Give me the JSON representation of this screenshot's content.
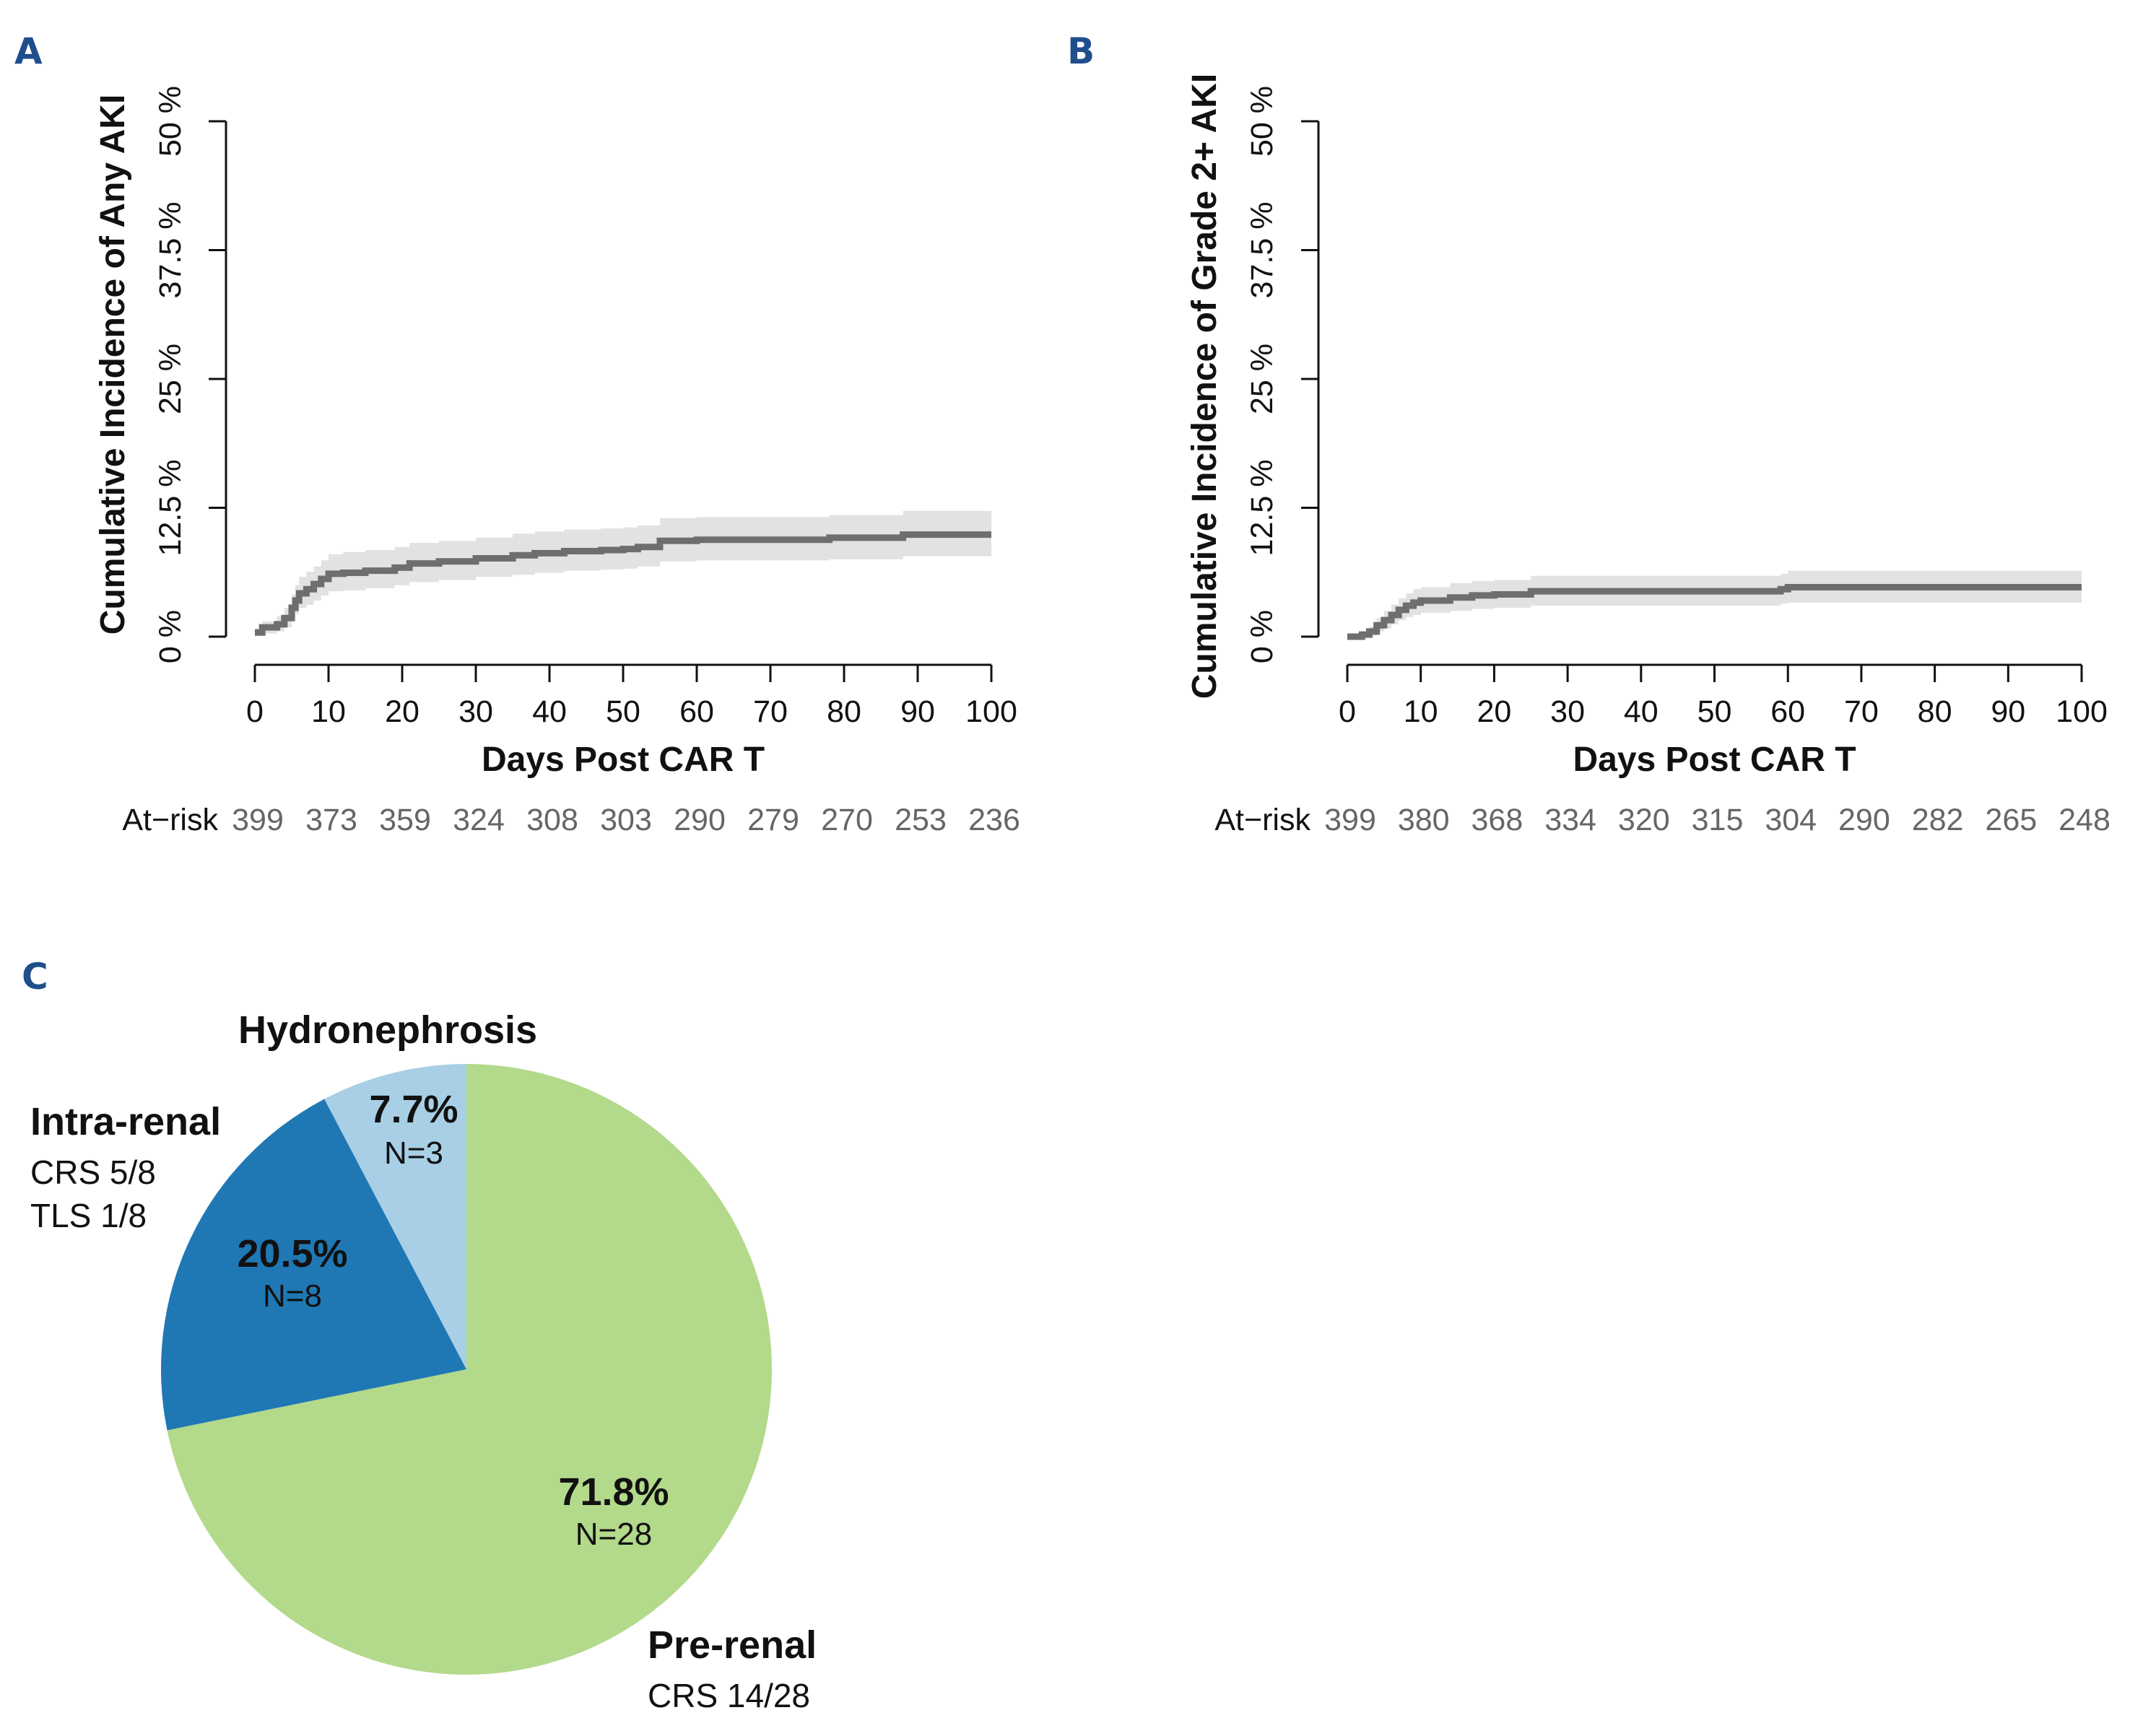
{
  "chart_data": [
    {
      "panel": "A",
      "type": "line",
      "xlabel": "Days Post CAR T",
      "ylabel": "Cumulative Incidence of Any AKI",
      "xlim": [
        0,
        100
      ],
      "ylim": [
        0,
        50
      ],
      "x_ticks": [
        "0",
        "10",
        "20",
        "30",
        "40",
        "50",
        "60",
        "70",
        "80",
        "90",
        "100"
      ],
      "y_ticks": [
        "0 %",
        "12.5 %",
        "25 %",
        "37.5 %",
        "50 %"
      ],
      "at_risk_label": "At−risk",
      "at_risk": [
        "399",
        "373",
        "359",
        "324",
        "308",
        "303",
        "290",
        "279",
        "270",
        "253",
        "236"
      ],
      "curve": {
        "x": [
          0,
          1,
          3,
          4,
          5,
          5.5,
          6,
          7,
          8,
          9,
          10,
          12,
          15,
          19,
          21,
          25,
          30,
          35,
          38,
          42,
          47,
          50,
          52,
          55,
          60,
          70,
          78,
          80,
          88,
          100
        ],
        "y": [
          0.4,
          0.9,
          1.2,
          1.8,
          2.8,
          3.5,
          4.2,
          4.6,
          5.1,
          5.6,
          6.1,
          6.2,
          6.4,
          6.7,
          7.1,
          7.3,
          7.6,
          7.9,
          8.1,
          8.3,
          8.4,
          8.5,
          8.7,
          9.3,
          9.4,
          9.4,
          9.6,
          9.6,
          9.9,
          9.9
        ]
      },
      "band_low": [
        0.1,
        0.3,
        0.5,
        0.9,
        1.6,
        2.2,
        2.8,
        3.1,
        3.5,
        4.0,
        4.4,
        4.5,
        4.7,
        5.0,
        5.3,
        5.5,
        5.8,
        6.0,
        6.2,
        6.4,
        6.5,
        6.6,
        6.8,
        7.3,
        7.4,
        7.4,
        7.5,
        7.5,
        7.8,
        7.8
      ],
      "band_high": [
        0.8,
        1.5,
        2.0,
        2.8,
        4.1,
        5.0,
        5.8,
        6.3,
        6.8,
        7.4,
        8.0,
        8.2,
        8.4,
        8.7,
        9.1,
        9.3,
        9.6,
        10.0,
        10.2,
        10.4,
        10.5,
        10.6,
        10.8,
        11.5,
        11.6,
        11.6,
        11.8,
        11.8,
        12.2,
        12.2
      ]
    },
    {
      "panel": "B",
      "type": "line",
      "xlabel": "Days Post CAR T",
      "ylabel": "Cumulative Incidence of Grade 2+ AKI",
      "xlim": [
        0,
        100
      ],
      "ylim": [
        0,
        50
      ],
      "x_ticks": [
        "0",
        "10",
        "20",
        "30",
        "40",
        "50",
        "60",
        "70",
        "80",
        "90",
        "100"
      ],
      "y_ticks": [
        "0 %",
        "12.5 %",
        "25 %",
        "37.5 %",
        "50 %"
      ],
      "at_risk_label": "At−risk",
      "at_risk": [
        "399",
        "380",
        "368",
        "334",
        "320",
        "315",
        "304",
        "290",
        "282",
        "265",
        "248"
      ],
      "curve": {
        "x": [
          0,
          2,
          3,
          4,
          5,
          6,
          7,
          8,
          9,
          10,
          14,
          17,
          20,
          25,
          30,
          50,
          58,
          59,
          60,
          80,
          100
        ],
        "y": [
          0,
          0.2,
          0.5,
          1.1,
          1.6,
          2.1,
          2.6,
          3.0,
          3.3,
          3.5,
          3.8,
          4.0,
          4.1,
          4.4,
          4.4,
          4.4,
          4.4,
          4.6,
          4.8,
          4.8,
          4.8
        ]
      },
      "band_low": [
        0,
        0,
        0.1,
        0.5,
        0.8,
        1.2,
        1.6,
        1.9,
        2.1,
        2.3,
        2.5,
        2.7,
        2.8,
        3.0,
        3.0,
        3.0,
        3.0,
        3.2,
        3.3,
        3.3,
        3.3
      ],
      "band_high": [
        0,
        0.5,
        1.0,
        1.8,
        2.5,
        3.1,
        3.7,
        4.2,
        4.6,
        4.8,
        5.2,
        5.4,
        5.5,
        5.9,
        5.9,
        5.9,
        5.9,
        6.1,
        6.4,
        6.4,
        6.4
      ]
    },
    {
      "panel": "C",
      "type": "pie",
      "slices": [
        {
          "name": "Pre-renal",
          "percent_label": "71.8%",
          "n_label": "N=28",
          "value": 71.8,
          "color": "#b3d98b",
          "details": [
            "CRS 14/28"
          ]
        },
        {
          "name": "Intra-renal",
          "percent_label": "20.5%",
          "n_label": "N=8",
          "value": 20.5,
          "color": "#1f78b4",
          "details": [
            "CRS 5/8",
            "TLS 1/8"
          ]
        },
        {
          "name": "Hydronephrosis",
          "percent_label": "7.7%",
          "n_label": "N=3",
          "value": 7.7,
          "color": "#a8cfe5",
          "details": []
        }
      ]
    }
  ],
  "panels": {
    "a": "A",
    "b": "B",
    "c": "C"
  },
  "colors": {
    "curve": "#6e6e6e",
    "band": "#e2e2e2",
    "axis": "#111111",
    "panel_letter": "#1f4e8c"
  }
}
